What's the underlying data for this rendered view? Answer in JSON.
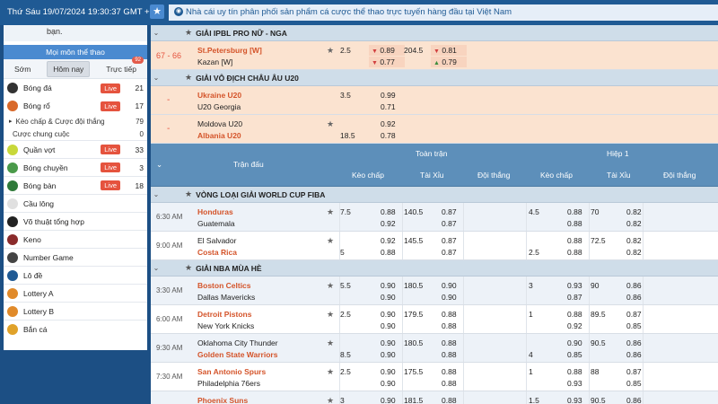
{
  "topbar": {
    "datetime": "Thứ Sáu 19/07/2024 19:30:37 GMT +7",
    "star": "★",
    "marquee": "Nhà cái uy tín phân phối sản phẩm cá cược thể thao trực tuyến hàng đầu tại Việt Nam"
  },
  "sidebar": {
    "top_text": "bạn.",
    "heading": "Mọi môn thể thao",
    "tabs": [
      {
        "label": "Sớm"
      },
      {
        "label": "Hôm nay"
      },
      {
        "label": "Trực tiếp"
      }
    ],
    "tab_badge": "92",
    "sports": [
      {
        "name": "Bóng đá",
        "live": "Live",
        "count": "21",
        "color": "#333"
      },
      {
        "name": "Bóng rổ",
        "live": "Live",
        "count": "17",
        "color": "#d9692a"
      },
      {
        "name": "Quần vợt",
        "live": "Live",
        "count": "33",
        "color": "#c8d83a"
      },
      {
        "name": "Bóng chuyền",
        "live": "Live",
        "count": "3",
        "color": "#4a9a4a"
      },
      {
        "name": "Bóng bàn",
        "live": "Live",
        "count": "18",
        "color": "#2f7a3a"
      },
      {
        "name": "Cầu lông",
        "live": "",
        "count": "",
        "color": "#e0e0e0"
      },
      {
        "name": "Võ thuật tổng hợp",
        "live": "",
        "count": "",
        "color": "#222"
      },
      {
        "name": "Keno",
        "live": "",
        "count": "",
        "color": "#8a2b2b"
      },
      {
        "name": "Number Game",
        "live": "",
        "count": "",
        "color": "#444"
      },
      {
        "name": "Lô đề",
        "live": "",
        "count": "",
        "color": "#1f5a94"
      },
      {
        "name": "Lottery A",
        "live": "",
        "count": "",
        "color": "#e08a2a"
      },
      {
        "name": "Lottery B",
        "live": "",
        "count": "",
        "color": "#e08a2a"
      },
      {
        "name": "Bắn cá",
        "live": "",
        "count": "",
        "color": "#e0a22a"
      }
    ],
    "sub_items": [
      {
        "label": "Kèo chấp & Cược đội thắng",
        "count": "79",
        "arrow": "▸"
      },
      {
        "label": "Cược chung cuộc",
        "count": "0",
        "arrow": ""
      }
    ]
  },
  "main": {
    "league1": "GIẢI IPBL PRO NỮ - NGA",
    "match1": {
      "score": "67 - 66",
      "home": "St.Petersburg [W]",
      "away": "Kazan [W]",
      "hcap": "2.5",
      "h1": "0.89",
      "h2": "0.77",
      "ou": "204.5",
      "o1": "0.81",
      "o2": "0.79"
    },
    "league2": "GIẢI VÔ ĐỊCH CHÂU ÂU U20",
    "match2": {
      "dash": "-",
      "home": "Ukraine U20",
      "away": "U20 Georgia",
      "hcap": "3.5",
      "h1": "0.99",
      "h2": "0.71"
    },
    "match3": {
      "dash": "-",
      "home": "Moldova U20",
      "away": "Albania U20",
      "hcap2": "18.5",
      "h1": "0.92",
      "h2": "0.78"
    },
    "header": {
      "match": "Trận đấu",
      "full": "Toàn trận",
      "half": "Hiệp 1",
      "cols": [
        "Kèo chấp",
        "Tài Xỉu",
        "Đội thắng",
        "Kèo chấp",
        "Tài Xỉu",
        "Đội thắng"
      ]
    },
    "league3": "VÒNG LOẠI GIẢI WORLD CUP FIBA",
    "league4": "GIẢI NBA MÙA HÈ",
    "rows": [
      {
        "time": "6:30 AM",
        "home": "Honduras",
        "away": "Guatemala",
        "hred": true,
        "ared": false,
        "hc": "7.5",
        "hc_row": 1,
        "h1": "0.88",
        "h2": "0.92",
        "ou": "140.5",
        "o1": "0.87",
        "o2": "0.87",
        "fhc": "4.5",
        "fhc_row": 1,
        "f1": "0.88",
        "f2": "0.88",
        "fou": "70",
        "fo1": "0.82",
        "fo2": "0.82"
      },
      {
        "time": "9:00 AM",
        "home": "El Salvador",
        "away": "Costa Rica",
        "hred": false,
        "ared": true,
        "hc": "5",
        "hc_row": 2,
        "h1": "0.92",
        "h2": "0.88",
        "ou": "145.5",
        "o1": "0.87",
        "o2": "0.87",
        "fhc": "2.5",
        "fhc_row": 2,
        "f1": "0.88",
        "f2": "0.88",
        "fou": "72.5",
        "fo1": "0.82",
        "fo2": "0.82"
      },
      {
        "time": "3:30 AM",
        "home": "Boston Celtics",
        "away": "Dallas Mavericks",
        "hred": true,
        "ared": false,
        "hc": "5.5",
        "hc_row": 1,
        "h1": "0.90",
        "h2": "0.90",
        "ou": "180.5",
        "o1": "0.90",
        "o2": "0.90",
        "fhc": "3",
        "fhc_row": 1,
        "f1": "0.93",
        "f2": "0.87",
        "fou": "90",
        "fo1": "0.86",
        "fo2": "0.86"
      },
      {
        "time": "6:00 AM",
        "home": "Detroit Pistons",
        "away": "New York Knicks",
        "hred": true,
        "ared": false,
        "hc": "2.5",
        "hc_row": 1,
        "h1": "0.90",
        "h2": "0.90",
        "ou": "179.5",
        "o1": "0.88",
        "o2": "0.88",
        "fhc": "1",
        "fhc_row": 1,
        "f1": "0.88",
        "f2": "0.92",
        "fou": "89.5",
        "fo1": "0.87",
        "fo2": "0.85"
      },
      {
        "time": "9:30 AM",
        "home": "Oklahoma City Thunder",
        "away": "Golden State Warriors",
        "hred": false,
        "ared": true,
        "hc": "8.5",
        "hc_row": 2,
        "h1": "0.90",
        "h2": "0.90",
        "ou": "180.5",
        "o1": "0.88",
        "o2": "0.88",
        "fhc": "4",
        "fhc_row": 2,
        "f1": "0.90",
        "f2": "0.85",
        "fou": "90.5",
        "fo1": "0.86",
        "fo2": "0.86"
      },
      {
        "time": "7:30 AM",
        "home": "San Antonio Spurs",
        "away": "Philadelphia 76ers",
        "hred": true,
        "ared": false,
        "hc": "2.5",
        "hc_row": 1,
        "h1": "0.90",
        "h2": "0.90",
        "ou": "175.5",
        "o1": "0.88",
        "o2": "0.88",
        "fhc": "1",
        "fhc_row": 1,
        "f1": "0.88",
        "f2": "0.93",
        "fou": "88",
        "fo1": "0.87",
        "fo2": "0.85"
      },
      {
        "time": "",
        "home": "Phoenix Suns",
        "away": "",
        "hred": true,
        "ared": false,
        "hc": "3",
        "hc_row": 1,
        "h1": "0.90",
        "h2": "",
        "ou": "181.5",
        "o1": "0.88",
        "o2": "",
        "fhc": "1.5",
        "fhc_row": 1,
        "f1": "0.93",
        "f2": "",
        "fou": "90.5",
        "fo1": "0.86",
        "fo2": ""
      }
    ]
  }
}
